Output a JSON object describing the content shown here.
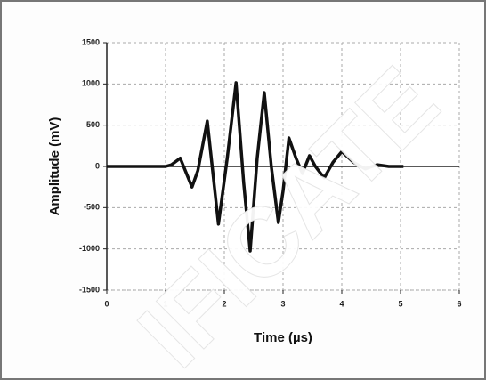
{
  "chart_data": {
    "type": "line",
    "x_label": "Time (µs)",
    "y_label": "Amplitude (mV)",
    "x": [
      0,
      0.9,
      1.0,
      1.1,
      1.25,
      1.45,
      1.55,
      1.71,
      1.9,
      2.05,
      2.2,
      2.33,
      2.44,
      2.56,
      2.68,
      2.8,
      2.92,
      3.0,
      3.1,
      3.22,
      3.33,
      3.45,
      3.55,
      3.7,
      3.85,
      4.0,
      4.2,
      4.4,
      4.6,
      4.8,
      5.05
    ],
    "series": [
      {
        "name": "Amplitude",
        "color": "#111111",
        "values": [
          0,
          0,
          0,
          20,
          100,
          -250,
          -50,
          550,
          -700,
          100,
          1015,
          -200,
          -1025,
          100,
          895,
          0,
          -680,
          -300,
          345,
          100,
          -85,
          130,
          0,
          -140,
          50,
          180,
          50,
          -30,
          20,
          0,
          0
        ]
      }
    ],
    "xlim": [
      0,
      6
    ],
    "xticks": [
      0,
      1,
      2,
      3,
      4,
      5,
      6
    ],
    "ylim": [
      -1500,
      1500
    ],
    "yticks": [
      -1500,
      -1000,
      -500,
      0,
      500,
      1000,
      1500
    ],
    "grid": true,
    "annotations": [
      "IFICATE"
    ]
  }
}
